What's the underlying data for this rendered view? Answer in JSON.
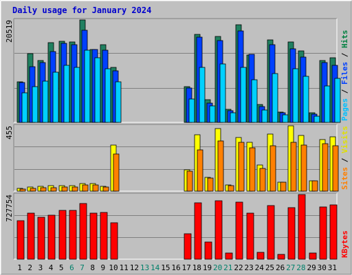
{
  "chart_data": {
    "type": "bar",
    "title": "Daily usage for January 2024",
    "categories": [
      "1",
      "2",
      "3",
      "4",
      "5",
      "6",
      "7",
      "8",
      "9",
      "10",
      "11",
      "12",
      "13",
      "14",
      "15",
      "16",
      "17",
      "18",
      "19",
      "20",
      "21",
      "22",
      "23",
      "24",
      "25",
      "26",
      "27",
      "28",
      "29",
      "30",
      "31"
    ],
    "weekend_days": [
      "6",
      "7",
      "13",
      "14",
      "20",
      "21",
      "27",
      "28"
    ],
    "panels": [
      {
        "name": "hits-files-pages",
        "ymax_label": "20519",
        "ylim": [
          0,
          20519
        ],
        "side_label": [
          {
            "text": "Pages",
            "color": "#00c0ff"
          },
          {
            "text": " / ",
            "color": "#000000"
          },
          {
            "text": "Files",
            "color": "#0040ff"
          },
          {
            "text": " / ",
            "color": "#000000"
          },
          {
            "text": "Hits",
            "color": "#008040"
          }
        ],
        "series": [
          {
            "name": "Hits",
            "color": "#208060",
            "values": [
              8130,
              13720,
              12380,
              16040,
              16210,
              16050,
              20460,
              14610,
              15600,
              11050,
              0,
              0,
              0,
              0,
              0,
              0,
              7160,
              17610,
              4550,
              17220,
              2600,
              19600,
              13460,
              3520,
              16530,
              2020,
              16100,
              14320,
              1860,
              12460,
              12970
            ]
          },
          {
            "name": "Files",
            "color": "#0040ff",
            "values": [
              7970,
              11180,
              12000,
              14120,
              15820,
              15580,
              18480,
              14630,
              14430,
              10380,
              0,
              0,
              0,
              0,
              0,
              0,
              6860,
              17010,
              3860,
              16370,
              2400,
              18370,
              13610,
              3200,
              15550,
              1940,
              14680,
              13040,
              1700,
              11980,
              11460
            ]
          },
          {
            "name": "Pages",
            "color": "#00d0ff",
            "values": [
              5910,
              7210,
              8300,
              10050,
              11470,
              11050,
              14430,
              12880,
              10690,
              8160,
              0,
              0,
              0,
              0,
              0,
              0,
              4730,
              11020,
              3270,
              11710,
              1920,
              10970,
              8560,
              2460,
              9760,
              1570,
              10710,
              9240,
              1230,
              7320,
              8750
            ]
          }
        ]
      },
      {
        "name": "visits-sites",
        "ymax_label": "455",
        "ylim": [
          0,
          455
        ],
        "side_label": [
          {
            "text": "Sites",
            "color": "#ff8000"
          },
          {
            "text": " / ",
            "color": "#000000"
          },
          {
            "text": "Visits",
            "color": "#e0e000"
          }
        ],
        "series": [
          {
            "name": "Visits",
            "color": "#ffff00",
            "values": [
              18,
              28,
              32,
              38,
              40,
              38,
              55,
              55,
              35,
              322,
              0,
              0,
              0,
              0,
              0,
              0,
              150,
              392,
              96,
              435,
              45,
              375,
              342,
              183,
              397,
              60,
              455,
              386,
              72,
              360,
              378
            ]
          },
          {
            "name": "Sites",
            "color": "#ff8000",
            "values": [
              12,
              20,
              24,
              24,
              30,
              28,
              44,
              43,
              27,
              258,
              0,
              0,
              0,
              0,
              0,
              0,
              137,
              285,
              90,
              350,
              40,
              341,
              304,
              157,
              317,
              60,
              341,
              321,
              70,
              330,
              315
            ]
          }
        ]
      },
      {
        "name": "kbytes",
        "ymax_label": "727754",
        "ylim": [
          0,
          727754
        ],
        "side_label": [
          {
            "text": "KBytes",
            "color": "#ff0000"
          }
        ],
        "series": [
          {
            "name": "KBytes",
            "color": "#ff0000",
            "values": [
              434000,
              516000,
              476000,
              492000,
              548000,
              548000,
              630000,
              516000,
              524000,
              414000,
              0,
              0,
              0,
              0,
              0,
              0,
              287000,
              638000,
              197000,
              658000,
              67000,
              646000,
              516000,
              74000,
              606000,
              52000,
              581000,
              727754,
              67000,
              590000,
              609000
            ]
          }
        ]
      }
    ]
  }
}
